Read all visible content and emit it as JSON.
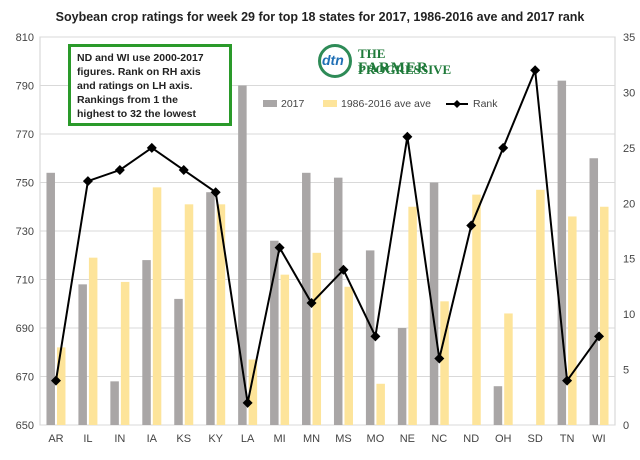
{
  "chart_data": {
    "type": "bar",
    "title": "Soybean crop ratings for week 29 for top 18 states for 2017, 1986-2016 ave and 2017 rank",
    "categories": [
      "AR",
      "IL",
      "IN",
      "IA",
      "KS",
      "KY",
      "LA",
      "MI",
      "MN",
      "MS",
      "MO",
      "NE",
      "NC",
      "ND",
      "OH",
      "SD",
      "TN",
      "WI"
    ],
    "series": [
      {
        "name": "2017",
        "kind": "bar",
        "axis": "left",
        "color": "#a9a6a6",
        "values": [
          754,
          708,
          668,
          718,
          702,
          746,
          790,
          726,
          754,
          752,
          722,
          690,
          750,
          null,
          666,
          null,
          792,
          760
        ]
      },
      {
        "name": "1986-2016 ave ave",
        "kind": "bar",
        "axis": "left",
        "color": "#fde49a",
        "values": [
          682,
          719,
          709,
          748,
          741,
          741,
          677,
          712,
          721,
          707,
          667,
          740,
          701,
          745,
          696,
          747,
          736,
          740
        ]
      },
      {
        "name": "Rank",
        "kind": "line",
        "axis": "right",
        "color": "#000000",
        "values": [
          4,
          22,
          23,
          25,
          23,
          21,
          2,
          16,
          11,
          14,
          8,
          26,
          6,
          18,
          25,
          32,
          4,
          8
        ]
      }
    ],
    "ylim_left": [
      650,
      810
    ],
    "yticks_left": [
      "650",
      "670",
      "690",
      "710",
      "730",
      "750",
      "770",
      "790",
      "810"
    ],
    "ylim_right": [
      0,
      35
    ],
    "yticks_right": [
      "0",
      "5",
      "10",
      "15",
      "20",
      "25",
      "30",
      "35"
    ],
    "grid": true,
    "legend_position": "top-right"
  },
  "note": "ND and WI use 2000-2017\nfigures. Rank on RH axis\nand ratings on LH axis.\nRankings from 1 the\nhighest to 32 the lowest",
  "logo": {
    "dtn": "dtn",
    "line1": "THE PROGRESSIVE",
    "line2": "FARMER"
  }
}
